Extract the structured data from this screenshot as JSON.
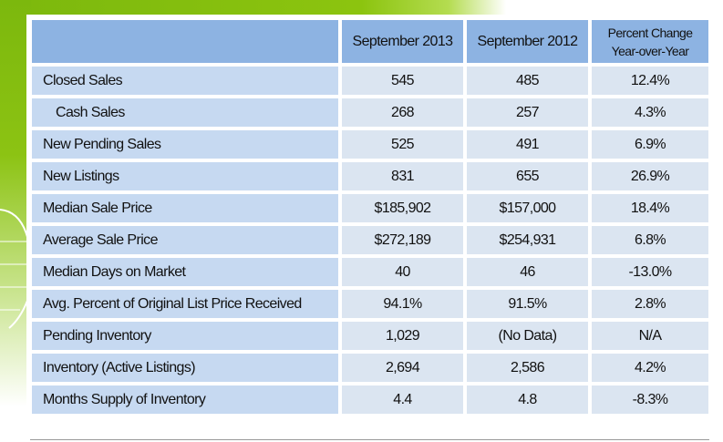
{
  "header": {
    "col1": "",
    "col2": "September 2013",
    "col3": "September 2012",
    "col4_line1": "Percent Change",
    "col4_line2": "Year-over-Year"
  },
  "rows": [
    {
      "label": "Closed Sales",
      "sep2013": "545",
      "sep2012": "485",
      "change": "12.4%"
    },
    {
      "label": "Cash Sales",
      "sep2013": "268",
      "sep2012": "257",
      "change": "4.3%"
    },
    {
      "label": "New Pending Sales",
      "sep2013": "525",
      "sep2012": "491",
      "change": "6.9%"
    },
    {
      "label": "New Listings",
      "sep2013": "831",
      "sep2012": "655",
      "change": "26.9%"
    },
    {
      "label": "Median Sale Price",
      "sep2013": "$185,902",
      "sep2012": "$157,000",
      "change": "18.4%"
    },
    {
      "label": "Average Sale Price",
      "sep2013": "$272,189",
      "sep2012": "$254,931",
      "change": "6.8%"
    },
    {
      "label": "Median Days on Market",
      "sep2013": "40",
      "sep2012": "46",
      "change": "-13.0%"
    },
    {
      "label": "Avg. Percent of Original List Price Received",
      "sep2013": "94.1%",
      "sep2012": "91.5%",
      "change": "2.8%"
    },
    {
      "label": "Pending Inventory",
      "sep2013": "1,029",
      "sep2012": "(No Data)",
      "change": "N/A"
    },
    {
      "label": "Inventory (Active Listings)",
      "sep2013": "2,694",
      "sep2012": "2,586",
      "change": "4.2%"
    },
    {
      "label": "Months Supply of Inventory",
      "sep2013": "4.4",
      "sep2012": "4.8",
      "change": "-8.3%"
    }
  ]
}
